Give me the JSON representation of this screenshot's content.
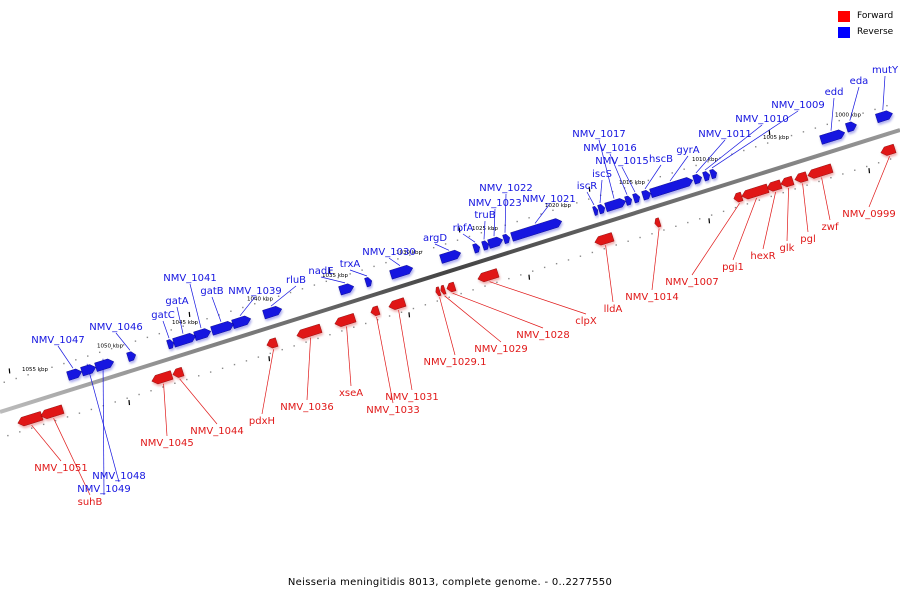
{
  "legend": {
    "forward_label": "Forward",
    "reverse_label": "Reverse",
    "forward_color": "#ff0000",
    "reverse_color": "#0000ff"
  },
  "caption": "Neisseria meningitidis 8013, complete genome. - 0..2277550",
  "colors": {
    "forward": "#e01818",
    "reverse": "#1515e0",
    "axis": "#555555"
  },
  "scale_labels": [
    "1000 kbp",
    "1005 kbp",
    "1010 kbp",
    "1015 kbp",
    "1020 kbp",
    "1025 kbp",
    "1030 kbp",
    "1035 kbp",
    "1040 kbp",
    "1045 kbp",
    "1050 kbp",
    "1055 kbp"
  ],
  "reverse_genes": [
    "mutY",
    "eda",
    "edd",
    "NMV_1009",
    "NMV_1010",
    "NMV_1011",
    "gyrA",
    "hscB",
    "NMV_1015",
    "NMV_1016",
    "NMV_1017",
    "iscS",
    "iscR",
    "NMV_1021",
    "NMV_1022",
    "NMV_1023",
    "truB",
    "rbfA",
    "argD",
    "NMV_1030",
    "trxA",
    "nadE",
    "rluB",
    "NMV_1039",
    "gatB",
    "NMV_1041",
    "gatA",
    "gatC",
    "NMV_1046",
    "NMV_1047",
    "NMV_1048",
    "NMV_1049"
  ],
  "forward_genes": [
    "NMV_0999",
    "zwf",
    "pgl",
    "glk",
    "hexR",
    "pgi1",
    "NMV_1007",
    "NMV_1014",
    "lldA",
    "clpX",
    "NMV_1028",
    "NMV_1029",
    "NMV_1029.1",
    "NMV_1031",
    "NMV_1033",
    "xseA",
    "NMV_1036",
    "pdxH",
    "NMV_1044",
    "NMV_1045",
    "NMV_1051",
    "suhB"
  ]
}
